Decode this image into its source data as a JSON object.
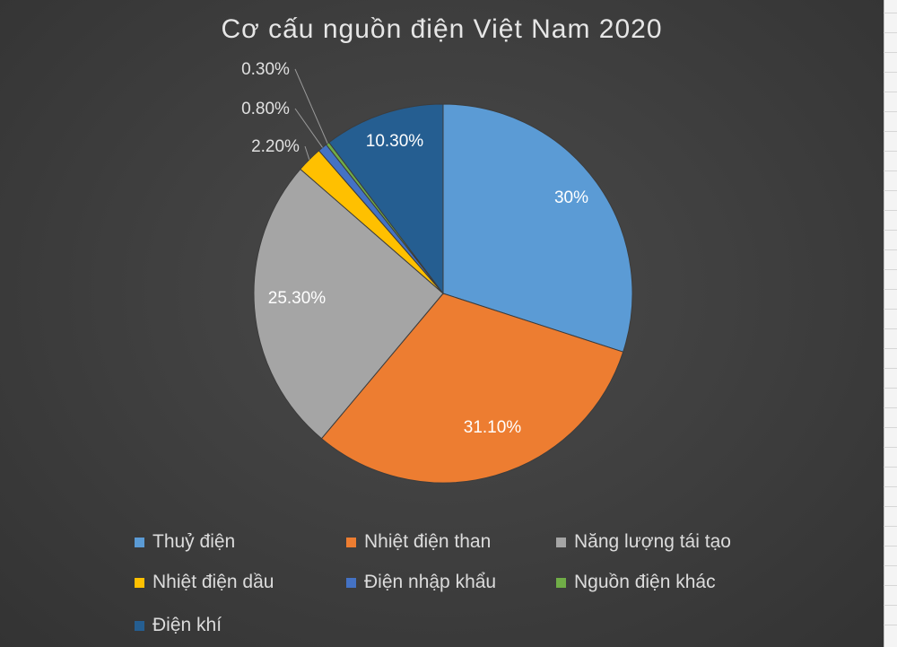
{
  "chart_data": {
    "type": "pie",
    "title": "Cơ cấu nguồn điện Việt Nam 2020",
    "slices": [
      {
        "name": "Thuỷ điện",
        "value": 30.0,
        "label": "30%",
        "color": "#5b9bd5"
      },
      {
        "name": "Nhiệt điện than",
        "value": 31.1,
        "label": "31.10%",
        "color": "#ed7d31"
      },
      {
        "name": "Năng lượng tái tạo",
        "value": 25.3,
        "label": "25.30%",
        "color": "#a5a5a5"
      },
      {
        "name": "Nhiệt điện dầu",
        "value": 2.2,
        "label": "2.20%",
        "color": "#ffc000"
      },
      {
        "name": "Điện nhập khẩu",
        "value": 0.8,
        "label": "0.80%",
        "color": "#4472c4"
      },
      {
        "name": "Nguồn điện khác",
        "value": 0.3,
        "label": "0.30%",
        "color": "#70ad47"
      },
      {
        "name": "Điện khí",
        "value": 10.3,
        "label": "10.30%",
        "color": "#255e91"
      }
    ],
    "legend_position": "bottom"
  }
}
